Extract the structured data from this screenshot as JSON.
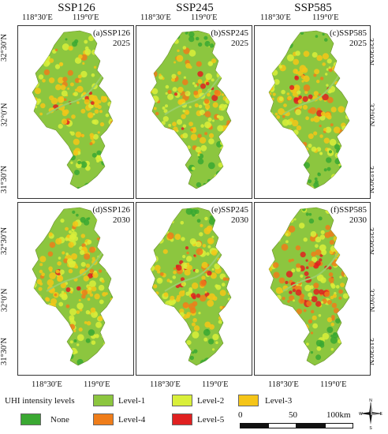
{
  "columns": [
    "SSP126",
    "SSP245",
    "SSP585"
  ],
  "lon_ticks": [
    "118°30′E",
    "119°0′E"
  ],
  "lat_ticks": [
    "32°30′N",
    "32°0′N",
    "31°30′N"
  ],
  "panels": [
    {
      "label": "(a)SSP126",
      "year": "2025",
      "hot": 0.25
    },
    {
      "label": "(b)SSP245",
      "year": "2025",
      "hot": 0.35
    },
    {
      "label": "(c)SSP585",
      "year": "2025",
      "hot": 0.3
    },
    {
      "label": "(d)SSP126",
      "year": "2030",
      "hot": 0.25
    },
    {
      "label": "(e)SSP245",
      "year": "2030",
      "hot": 0.4
    },
    {
      "label": "(f)SSP585",
      "year": "2030",
      "hot": 0.85
    }
  ],
  "legend": {
    "title": "UHI intensity levels",
    "items": [
      {
        "label": "None",
        "color": "#3aa832"
      },
      {
        "label": "Level-1",
        "color": "#8cc63f"
      },
      {
        "label": "Level-2",
        "color": "#d9ef3a"
      },
      {
        "label": "Level-3",
        "color": "#f5c518"
      },
      {
        "label": "Level-4",
        "color": "#ef7d1a"
      },
      {
        "label": "Level-5",
        "color": "#e02020"
      }
    ]
  },
  "scale": {
    "ticks": [
      "0",
      "50",
      "100km"
    ]
  },
  "compass": {
    "n": "N",
    "s": "S",
    "e": "E",
    "w": "W"
  }
}
